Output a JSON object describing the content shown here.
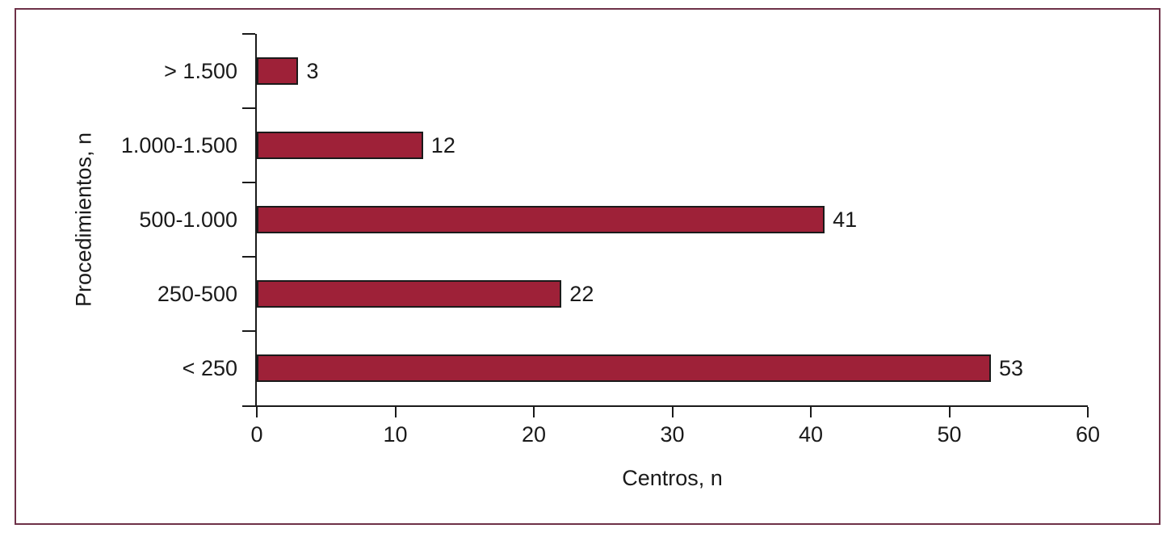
{
  "chart_data": {
    "type": "bar",
    "orientation": "horizontal",
    "categories": [
      "> 1.500",
      "1.000-1.500",
      "500-1.000",
      "250-500",
      "< 250"
    ],
    "values": [
      3,
      12,
      41,
      22,
      53
    ],
    "title": "",
    "xlabel": "Centros, n",
    "ylabel": "Procedimientos, n",
    "xlim": [
      0,
      60
    ],
    "xticks": [
      0,
      10,
      20,
      30,
      40,
      50,
      60
    ],
    "grid": false,
    "legend": null,
    "data_labels_shown": true,
    "colors": {
      "bar_fill": "#9E2138",
      "bar_border": "#1A1A1A",
      "axis": "#1A1A1A",
      "frame_border": "#6E3148",
      "background": "#FFFFFF"
    }
  }
}
